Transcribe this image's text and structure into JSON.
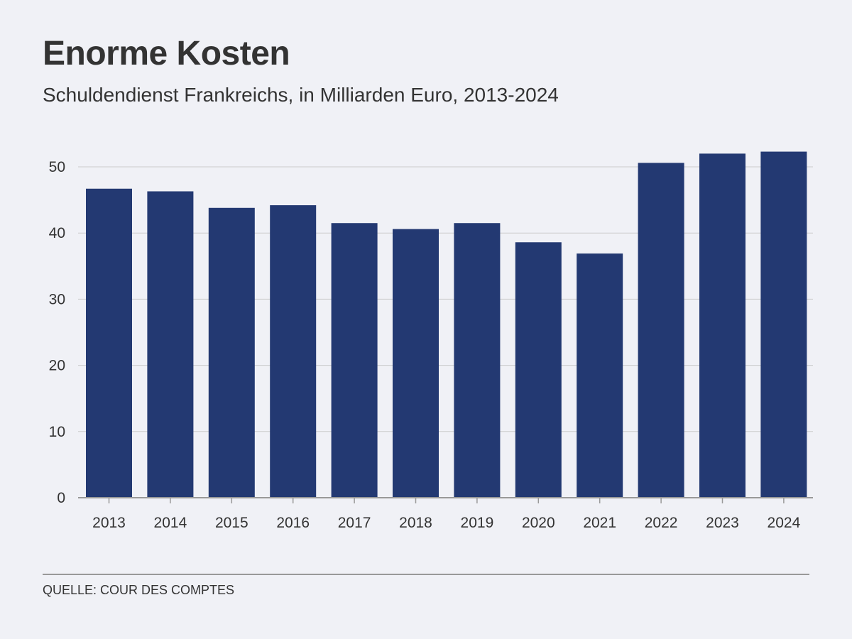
{
  "header": {
    "title": "Enorme Kosten",
    "subtitle": "Schuldendienst Frankreichs, in Milliarden Euro, 2013-2024"
  },
  "footer": {
    "source": "QUELLE: COUR DES COMPTES"
  },
  "colors": {
    "bar": "#233972",
    "gridline": "#cccccc",
    "axis": "#999999",
    "text": "#333333",
    "background": "#f0f1f6"
  },
  "chart_data": {
    "type": "bar",
    "title": "Enorme Kosten",
    "subtitle": "Schuldendienst Frankreichs, in Milliarden Euro, 2013-2024",
    "categories": [
      "2013",
      "2014",
      "2015",
      "2016",
      "2017",
      "2018",
      "2019",
      "2020",
      "2021",
      "2022",
      "2023",
      "2024"
    ],
    "values": [
      46.7,
      46.3,
      43.8,
      44.2,
      41.5,
      40.6,
      41.5,
      38.6,
      36.9,
      50.6,
      52.0,
      52.3
    ],
    "yticks": [
      0,
      10,
      20,
      30,
      40,
      50
    ],
    "ylim": [
      0,
      54
    ],
    "xlabel": "",
    "ylabel": "",
    "grid": true,
    "legend": "none"
  }
}
